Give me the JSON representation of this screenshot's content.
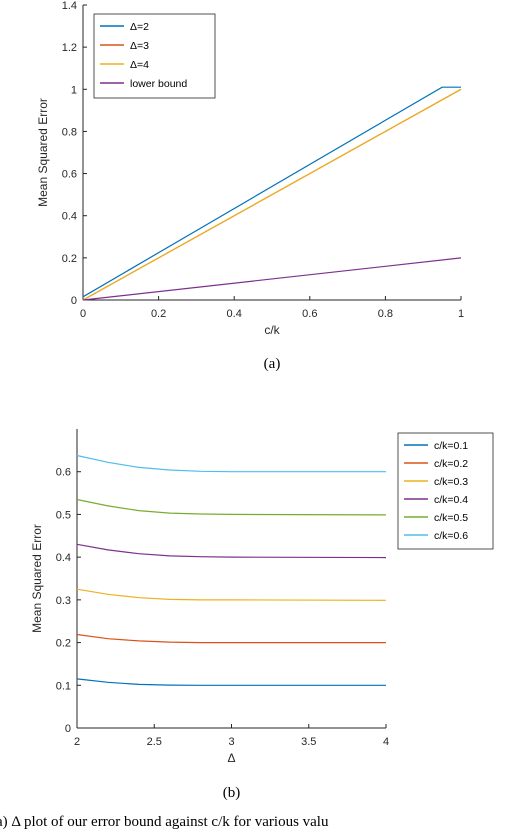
{
  "chart_data": [
    {
      "type": "line",
      "panel_label": "(a)",
      "xlabel": "c/k",
      "ylabel": "Mean Squared Error",
      "xlim": [
        0,
        1
      ],
      "ylim": [
        0,
        1.4
      ],
      "xticks": [
        "0",
        "0.2",
        "0.4",
        "0.6",
        "0.8",
        "1"
      ],
      "yticks": [
        "0",
        "0.2",
        "0.4",
        "0.6",
        "0.8",
        "1",
        "1.2",
        "1.4"
      ],
      "legend_position": "top-left",
      "series": [
        {
          "name": "Δ=2",
          "color": "#0072bd",
          "x": [
            0,
            0.95,
            1
          ],
          "y": [
            0.015,
            1.01,
            1.01
          ]
        },
        {
          "name": "Δ=3",
          "color": "#d95319",
          "x": [
            0,
            1
          ],
          "y": [
            0,
            1.0
          ]
        },
        {
          "name": "Δ=4",
          "color": "#edb120",
          "x": [
            0,
            1
          ],
          "y": [
            0,
            1.0
          ]
        },
        {
          "name": "lower bound",
          "color": "#7e2f8e",
          "x": [
            0,
            1
          ],
          "y": [
            0,
            0.2
          ]
        }
      ]
    },
    {
      "type": "line",
      "panel_label": "(b)",
      "xlabel": "Δ",
      "ylabel": "Mean Squared Error",
      "xlim": [
        2,
        4
      ],
      "ylim": [
        0,
        0.7
      ],
      "xticks": [
        "2",
        "2.5",
        "3",
        "3.5",
        "4"
      ],
      "yticks": [
        "0",
        "0.1",
        "0.2",
        "0.3",
        "0.4",
        "0.5",
        "0.6"
      ],
      "legend_position": "top-right",
      "series": [
        {
          "name": "c/k=0.1",
          "color": "#0072bd",
          "x": [
            2,
            2.2,
            2.4,
            2.6,
            2.8,
            3,
            4
          ],
          "y": [
            0.115,
            0.107,
            0.102,
            0.1005,
            0.1,
            0.1,
            0.1
          ]
        },
        {
          "name": "c/k=0.2",
          "color": "#d95319",
          "x": [
            2,
            2.2,
            2.4,
            2.6,
            2.8,
            3,
            4
          ],
          "y": [
            0.219,
            0.209,
            0.204,
            0.201,
            0.2,
            0.2,
            0.2
          ]
        },
        {
          "name": "c/k=0.3",
          "color": "#edb120",
          "x": [
            2,
            2.2,
            2.4,
            2.6,
            2.8,
            3,
            4
          ],
          "y": [
            0.325,
            0.313,
            0.305,
            0.301,
            0.3,
            0.3,
            0.299
          ]
        },
        {
          "name": "c/k=0.4",
          "color": "#7e2f8e",
          "x": [
            2,
            2.2,
            2.4,
            2.6,
            2.8,
            3,
            4
          ],
          "y": [
            0.43,
            0.417,
            0.408,
            0.403,
            0.401,
            0.4,
            0.399
          ]
        },
        {
          "name": "c/k=0.5",
          "color": "#77ac30",
          "x": [
            2,
            2.2,
            2.4,
            2.6,
            2.8,
            3,
            4
          ],
          "y": [
            0.535,
            0.52,
            0.509,
            0.503,
            0.501,
            0.5,
            0.499
          ]
        },
        {
          "name": "c/k=0.6",
          "color": "#4dbeee",
          "x": [
            2,
            2.2,
            2.4,
            2.6,
            2.8,
            3,
            4
          ],
          "y": [
            0.638,
            0.622,
            0.61,
            0.604,
            0.601,
            0.6,
            0.6
          ]
        }
      ]
    }
  ],
  "caption_text": "a) Δ plot of our error bound against c/k for various valu"
}
